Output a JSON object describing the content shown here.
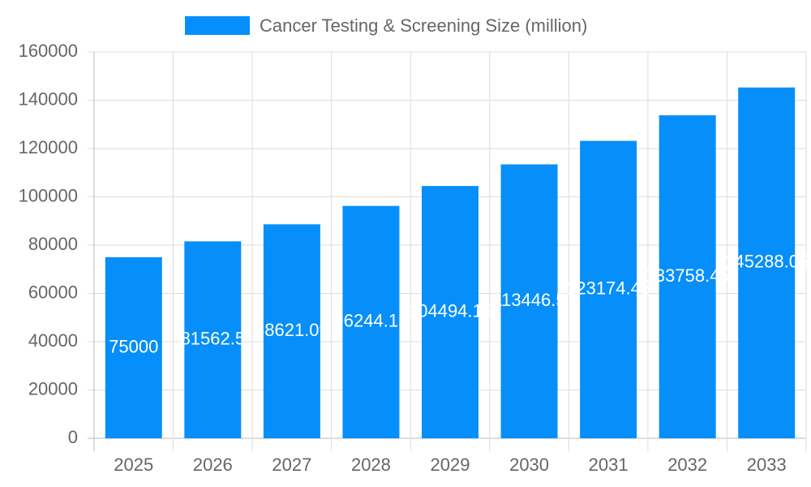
{
  "chart_data": {
    "type": "bar",
    "series": [
      {
        "name": "Cancer Testing & Screening Size (million)",
        "color": "#068ffa",
        "values": [
          75000,
          81562.5,
          88621.09,
          96244.15,
          104494.15,
          113446.5,
          123174.45,
          133758.45,
          145288.05
        ]
      }
    ],
    "categories": [
      "2025",
      "2026",
      "2027",
      "2028",
      "2029",
      "2030",
      "2031",
      "2032",
      "2033"
    ],
    "ylim": [
      0,
      160000
    ],
    "yticks": [
      0,
      20000,
      40000,
      60000,
      80000,
      100000,
      120000,
      140000,
      160000
    ],
    "grid": true,
    "legend": "top"
  }
}
